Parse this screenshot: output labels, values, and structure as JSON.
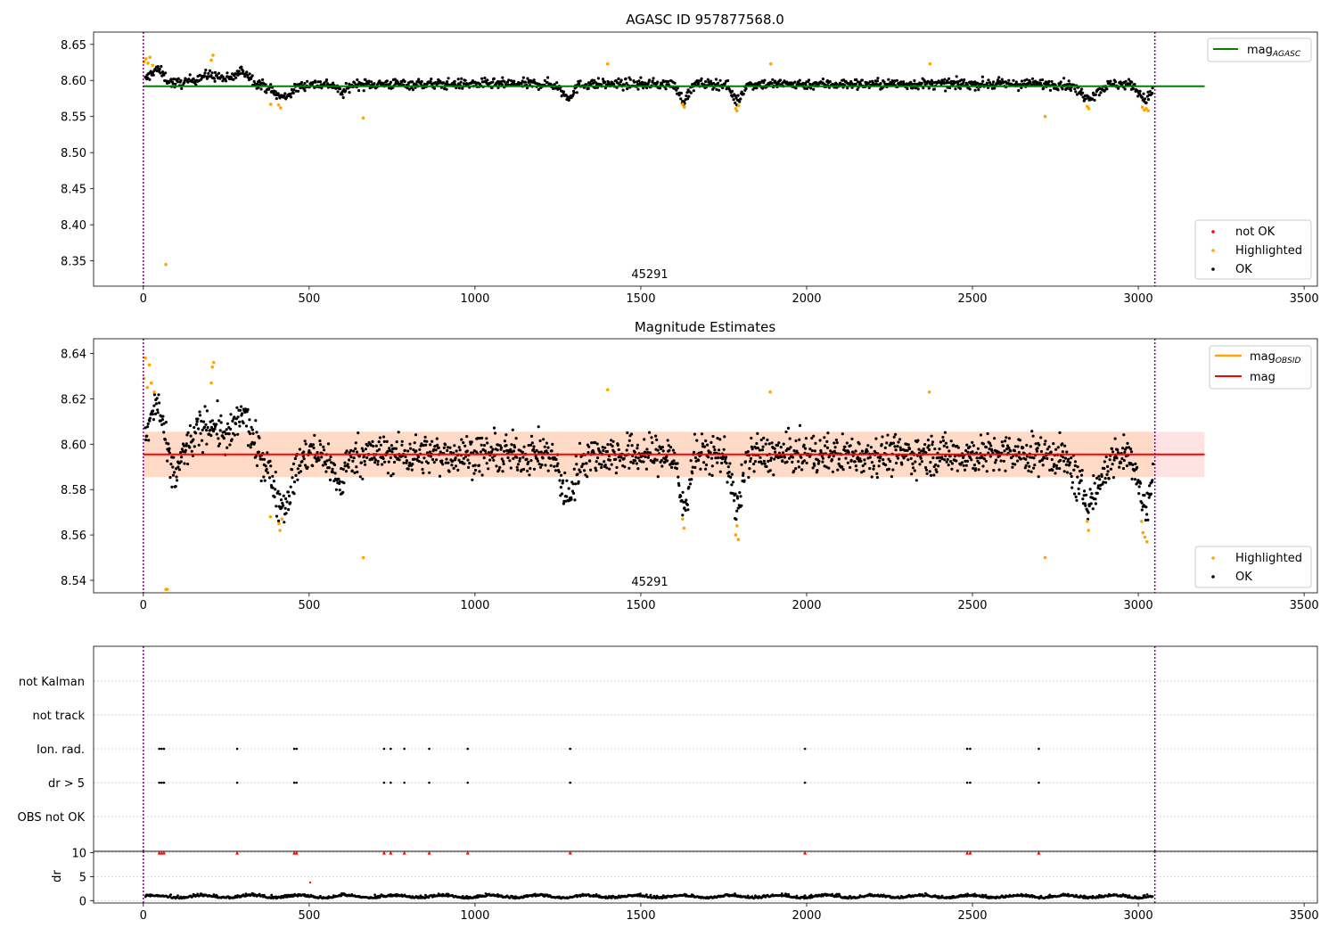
{
  "chart_data": [
    {
      "type": "scatter",
      "title": "AGASC ID 957877568.0",
      "xlim": [
        -150,
        3540
      ],
      "ylim": [
        8.315,
        8.667
      ],
      "xticks": [
        0,
        500,
        1000,
        1500,
        2000,
        2500,
        3000,
        3500
      ],
      "yticks": [
        8.35,
        8.4,
        8.45,
        8.5,
        8.55,
        8.6,
        8.65
      ],
      "annotation": "45291",
      "vlines": [
        0,
        3050
      ],
      "line_legend": [
        {
          "label": "mag",
          "sub": "AGASC",
          "color": "#008000"
        }
      ],
      "point_legend": [
        {
          "label": "not OK",
          "color": "#ff0000"
        },
        {
          "label": "Highlighted",
          "color": "#ffa500"
        },
        {
          "label": "OK",
          "color": "#000000"
        }
      ],
      "mag_agasc_line": {
        "x": [
          0,
          3200
        ],
        "y": 8.592
      },
      "highlighted_points": [
        [
          2,
          8.626
        ],
        [
          8,
          8.63
        ],
        [
          14,
          8.624
        ],
        [
          20,
          8.632
        ],
        [
          28,
          8.621
        ],
        [
          68,
          8.345
        ],
        [
          205,
          8.628
        ],
        [
          210,
          8.635
        ],
        [
          384,
          8.567
        ],
        [
          408,
          8.566
        ],
        [
          414,
          8.562
        ],
        [
          663,
          8.548
        ],
        [
          1400,
          8.623
        ],
        [
          1626,
          8.567
        ],
        [
          1631,
          8.563
        ],
        [
          1786,
          8.561
        ],
        [
          1790,
          8.558
        ],
        [
          1795,
          8.565
        ],
        [
          1892,
          8.623
        ],
        [
          2372,
          8.623
        ],
        [
          2719,
          8.55
        ],
        [
          2846,
          8.564
        ],
        [
          2851,
          8.561
        ],
        [
          3012,
          8.563
        ],
        [
          3018,
          8.559
        ],
        [
          3024,
          8.561
        ],
        [
          3030,
          8.558
        ]
      ],
      "ok_series": {
        "x_start": 5,
        "x_end": 3045,
        "n": 1450,
        "base": 8.595,
        "spread": 0.008,
        "dips": [
          [
            40,
            8.615,
            30
          ],
          [
            200,
            8.607,
            60
          ],
          [
            300,
            8.612,
            30
          ],
          [
            420,
            8.577,
            40
          ],
          [
            600,
            8.583,
            20
          ],
          [
            1280,
            8.578,
            25
          ],
          [
            1630,
            8.573,
            20
          ],
          [
            1790,
            8.572,
            20
          ],
          [
            2850,
            8.578,
            40
          ],
          [
            3020,
            8.574,
            25
          ]
        ]
      }
    },
    {
      "type": "scatter",
      "title": "Magnitude Estimates",
      "xlim": [
        -150,
        3540
      ],
      "ylim": [
        8.5345,
        8.6465
      ],
      "xticks": [
        0,
        500,
        1000,
        1500,
        2000,
        2500,
        3000,
        3500
      ],
      "yticks": [
        8.54,
        8.56,
        8.58,
        8.6,
        8.62,
        8.64
      ],
      "annotation": "45291",
      "vlines": [
        0,
        3050
      ],
      "line_legend": [
        {
          "label": "mag",
          "sub": "OBSID",
          "color": "#ffa500"
        },
        {
          "label": "mag",
          "sub": "",
          "color": "#ff0000"
        }
      ],
      "point_legend": [
        {
          "label": "Highlighted",
          "color": "#ffa500"
        },
        {
          "label": "OK",
          "color": "#000000"
        }
      ],
      "mag_line": {
        "x": [
          0,
          3200
        ],
        "y": 8.5955
      },
      "mag_band": {
        "x": [
          0,
          3200
        ],
        "y": [
          8.5855,
          8.6055
        ]
      },
      "highlighted_points": [
        [
          2,
          8.629
        ],
        [
          6,
          8.638
        ],
        [
          12,
          8.625
        ],
        [
          18,
          8.635
        ],
        [
          24,
          8.627
        ],
        [
          33,
          8.623
        ],
        [
          68,
          8.536
        ],
        [
          72,
          8.536
        ],
        [
          205,
          8.627
        ],
        [
          208,
          8.634
        ],
        [
          212,
          8.636
        ],
        [
          383,
          8.568
        ],
        [
          409,
          8.565
        ],
        [
          412,
          8.562
        ],
        [
          418,
          8.567
        ],
        [
          663,
          8.55
        ],
        [
          1400,
          8.624
        ],
        [
          1626,
          8.567
        ],
        [
          1630,
          8.563
        ],
        [
          1786,
          8.56
        ],
        [
          1790,
          8.564
        ],
        [
          1794,
          8.558
        ],
        [
          1890,
          8.623
        ],
        [
          2370,
          8.623
        ],
        [
          2719,
          8.55
        ],
        [
          2846,
          8.566
        ],
        [
          2850,
          8.562
        ],
        [
          3010,
          8.566
        ],
        [
          3014,
          8.561
        ],
        [
          3020,
          8.559
        ],
        [
          3026,
          8.557
        ]
      ],
      "ok_series": {
        "x_start": 5,
        "x_end": 3045,
        "n": 1800,
        "base": 8.5955,
        "spread": 0.0095,
        "dips": [
          [
            40,
            8.617,
            30
          ],
          [
            90,
            8.585,
            25
          ],
          [
            200,
            8.609,
            60
          ],
          [
            300,
            8.612,
            30
          ],
          [
            420,
            8.574,
            40
          ],
          [
            590,
            8.583,
            25
          ],
          [
            1280,
            8.577,
            30
          ],
          [
            1630,
            8.572,
            20
          ],
          [
            1790,
            8.571,
            20
          ],
          [
            2850,
            8.576,
            50
          ],
          [
            3020,
            8.572,
            25
          ]
        ]
      }
    },
    {
      "type": "scatter",
      "title": "",
      "xlim": [
        -150,
        3540
      ],
      "categories": [
        "not Kalman",
        "not track",
        "Ion. rad.",
        "dr > 5",
        "OBS not OK"
      ],
      "vlines": [
        0,
        3050
      ],
      "flag_points": {
        "Ion. rad.": [
          48,
          55,
          62,
          283,
          455,
          462,
          726,
          746,
          787,
          862,
          978,
          1287,
          1995,
          2484,
          2493,
          2700
        ],
        "dr > 5": [
          48,
          55,
          62,
          283,
          455,
          462,
          726,
          746,
          787,
          862,
          978,
          1287,
          1995,
          2484,
          2493,
          2700
        ]
      }
    },
    {
      "type": "scatter",
      "title": "",
      "xlim": [
        -150,
        3540
      ],
      "ylim": [
        -0.5,
        10.3
      ],
      "xticks": [
        0,
        500,
        1000,
        1500,
        2000,
        2500,
        3000,
        3500
      ],
      "yticks": [
        0,
        5,
        10
      ],
      "ylabel": "dr",
      "vlines": [
        0,
        3050
      ],
      "clipped_dr_points": [
        48,
        55,
        62,
        283,
        455,
        462,
        726,
        746,
        787,
        862,
        978,
        1287,
        1995,
        2484,
        2493,
        2700
      ],
      "outlier_points": [
        [
          503,
          3.8
        ]
      ],
      "dr_series": {
        "x_start": 5,
        "x_end": 3045,
        "n": 1450,
        "base": 0.7,
        "spread": 0.4
      }
    }
  ]
}
